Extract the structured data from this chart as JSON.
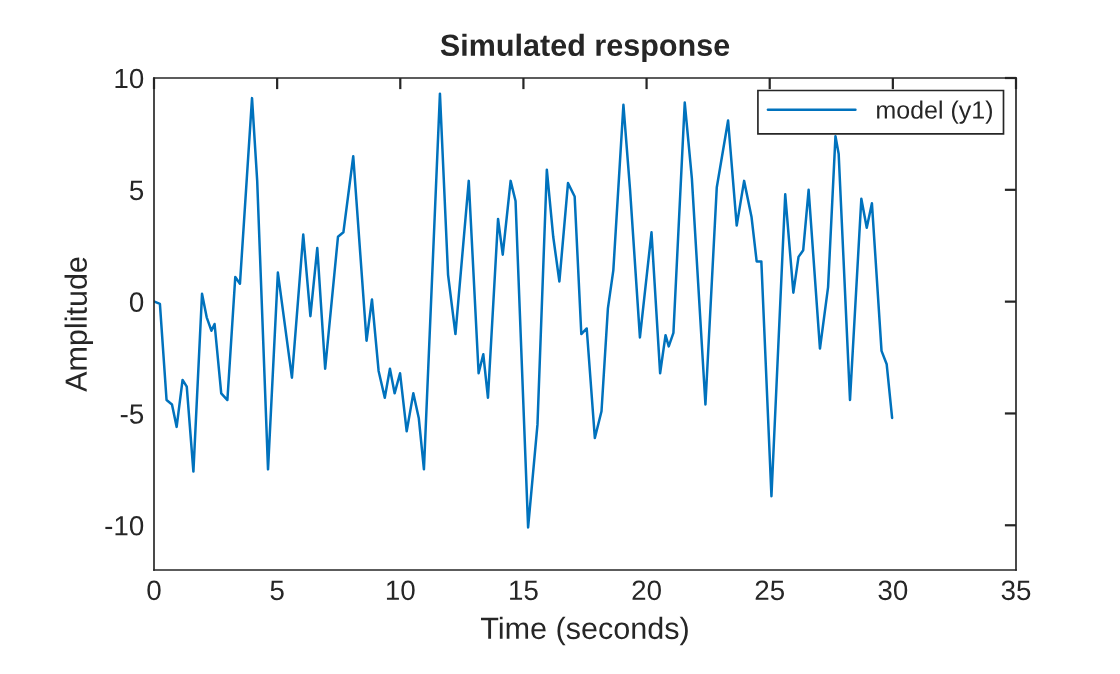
{
  "chart_data": {
    "type": "line",
    "title": "Simulated response",
    "xlabel": "Time (seconds)",
    "ylabel": "Amplitude",
    "xlim": [
      0,
      35
    ],
    "xticks": [
      0,
      5,
      10,
      15,
      20,
      25,
      30,
      35
    ],
    "ylim": [
      -12,
      10
    ],
    "yticks": [
      -10,
      -5,
      0,
      5,
      10
    ],
    "grid": false,
    "legend": "top right",
    "series": [
      {
        "name": "model (y1)",
        "color": "#0072bd",
        "x": [
          0.02,
          0.24,
          0.51,
          0.73,
          0.92,
          1.16,
          1.33,
          1.6,
          1.95,
          2.14,
          2.33,
          2.46,
          2.73,
          2.98,
          3.3,
          3.49,
          3.98,
          4.19,
          4.63,
          5.03,
          5.6,
          6.06,
          6.35,
          6.63,
          6.95,
          7.47,
          7.69,
          8.09,
          8.63,
          8.85,
          9.12,
          9.37,
          9.58,
          9.77,
          9.99,
          10.26,
          10.53,
          10.75,
          10.96,
          11.61,
          11.94,
          12.24,
          12.78,
          13.18,
          13.37,
          13.56,
          13.97,
          14.16,
          14.48,
          14.68,
          15.19,
          15.57,
          15.95,
          16.21,
          16.46,
          16.81,
          17.08,
          17.35,
          17.57,
          17.9,
          18.17,
          18.43,
          18.65,
          19.06,
          19.33,
          19.73,
          20.2,
          20.55,
          20.77,
          20.9,
          21.09,
          21.55,
          21.84,
          22.39,
          22.85,
          23.31,
          23.66,
          23.96,
          24.26,
          24.47,
          24.66,
          25.07,
          25.63,
          25.96,
          26.17,
          26.36,
          26.58,
          27.04,
          27.37,
          27.67,
          27.8,
          28.26,
          28.72,
          28.94,
          29.15,
          29.54,
          29.75,
          29.97
        ],
        "values": [
          0.0,
          -0.1,
          -4.4,
          -4.6,
          -5.6,
          -3.5,
          -3.8,
          -7.6,
          0.35,
          -0.7,
          -1.3,
          -1.0,
          -4.1,
          -4.4,
          1.1,
          0.8,
          9.1,
          5.4,
          -7.5,
          1.3,
          -3.4,
          3.0,
          -0.65,
          2.4,
          -3.0,
          2.9,
          3.1,
          6.5,
          -1.75,
          0.1,
          -3.1,
          -4.3,
          -3.0,
          -4.1,
          -3.2,
          -5.8,
          -4.1,
          -5.2,
          -7.5,
          9.3,
          1.2,
          -1.45,
          5.4,
          -3.2,
          -2.35,
          -4.3,
          3.7,
          2.1,
          5.4,
          4.5,
          -10.1,
          -5.5,
          5.9,
          2.9,
          0.9,
          5.3,
          4.7,
          -1.45,
          -1.2,
          -6.1,
          -4.9,
          -0.3,
          1.4,
          8.8,
          5.0,
          -1.6,
          3.1,
          -3.2,
          -1.5,
          -2.0,
          -1.4,
          8.9,
          5.5,
          -4.6,
          5.1,
          8.1,
          3.4,
          5.4,
          3.8,
          1.8,
          1.8,
          -8.7,
          4.8,
          0.4,
          2.0,
          2.3,
          5.0,
          -2.1,
          0.65,
          7.4,
          6.6,
          -4.4,
          4.6,
          3.3,
          4.4,
          -2.2,
          -2.8,
          -5.2
        ]
      }
    ]
  }
}
